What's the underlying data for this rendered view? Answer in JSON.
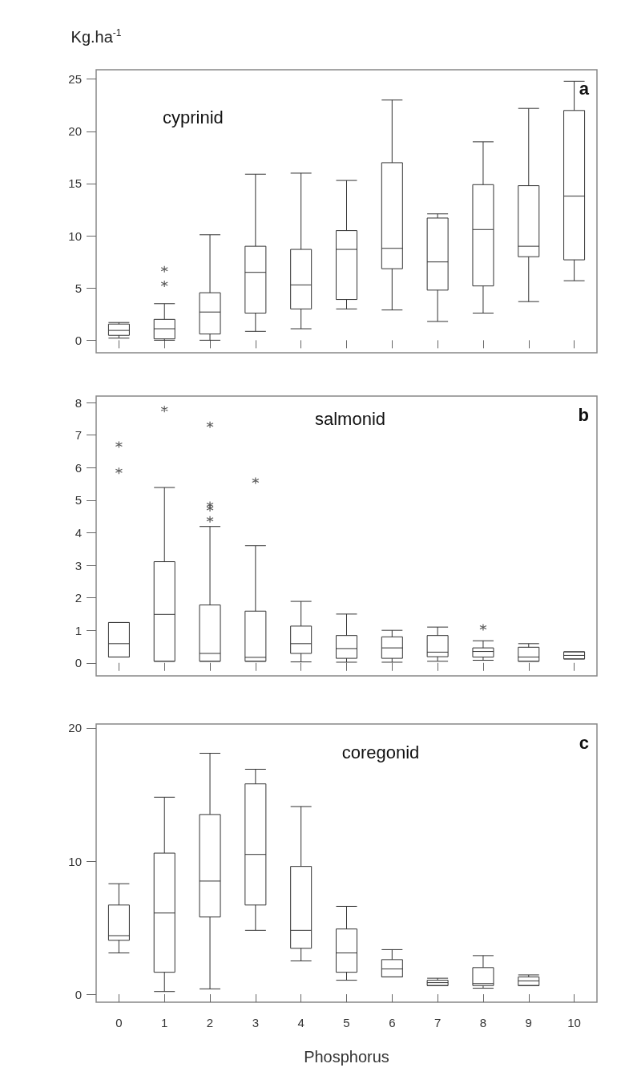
{
  "chart_data": [
    {
      "type": "box",
      "title": "cyprinid",
      "ylabel": "Kg.ha$^{-1}$",
      "annotations": [
        "a"
      ],
      "categories": [
        "0",
        "1",
        "2",
        "3",
        "4",
        "5",
        "6",
        "7",
        "8",
        "9",
        "10"
      ],
      "color": "#333333",
      "marker": "star",
      "tick_labels": "y",
      "grid": false,
      "ylim": [
        -1.2,
        25.9
      ],
      "yticks": [
        0,
        5,
        10,
        15,
        20,
        25
      ],
      "boxes": [
        {
          "low": 0.2,
          "q1": 0.47,
          "median": 0.94,
          "q3": 1.55,
          "high": 1.7
        },
        {
          "low": 0,
          "q1": 0.13,
          "median": 1.1,
          "q3": 2.0,
          "high": 3.5,
          "outliers": [
            5.4,
            6.8
          ]
        },
        {
          "low": 0,
          "q1": 0.6,
          "median": 2.7,
          "q3": 4.55,
          "high": 10.1
        },
        {
          "low": 0.85,
          "q1": 2.6,
          "median": 6.5,
          "q3": 9.0,
          "high": 15.9
        },
        {
          "low": 1.1,
          "q1": 3.0,
          "median": 5.3,
          "q3": 8.7,
          "high": 16.0
        },
        {
          "low": 3.0,
          "q1": 3.9,
          "median": 8.7,
          "q3": 10.5,
          "high": 15.3
        },
        {
          "low": 2.9,
          "q1": 6.85,
          "median": 8.8,
          "q3": 17.0,
          "high": 23.0
        },
        {
          "low": 1.8,
          "q1": 4.8,
          "median": 7.5,
          "q3": 11.7,
          "high": 12.1
        },
        {
          "low": 2.6,
          "q1": 5.2,
          "median": 10.6,
          "q3": 14.9,
          "high": 19.0
        },
        {
          "low": 3.7,
          "q1": 8.0,
          "median": 9.0,
          "q3": 14.8,
          "high": 22.2
        },
        {
          "low": 5.7,
          "q1": 7.7,
          "median": 13.8,
          "q3": 22.0,
          "high": 24.8
        }
      ]
    },
    {
      "type": "box",
      "title": "salmonid",
      "annotations": [
        "b"
      ],
      "categories": [
        "0",
        "1",
        "2",
        "3",
        "4",
        "5",
        "6",
        "7",
        "8",
        "9",
        "10"
      ],
      "color": "#333333",
      "marker": "star",
      "tick_labels": "y",
      "grid": false,
      "ylim": [
        -0.4,
        8.2
      ],
      "yticks": [
        0,
        1,
        2,
        3,
        4,
        5,
        6,
        7,
        8
      ],
      "boxes": [
        {
          "low": 0.18,
          "q1": 0.18,
          "median": 0.59,
          "q3": 1.24,
          "high": 1.24,
          "outliers": [
            5.9,
            6.71
          ]
        },
        {
          "low": 0.05,
          "q1": 0.05,
          "median": 1.49,
          "q3": 3.11,
          "high": 5.39,
          "outliers": [
            7.8
          ]
        },
        {
          "low": 0.05,
          "q1": 0.05,
          "median": 0.29,
          "q3": 1.78,
          "high": 4.19,
          "outliers": [
            4.41,
            4.75,
            4.86,
            7.32
          ]
        },
        {
          "low": 0.05,
          "q1": 0.05,
          "median": 0.17,
          "q3": 1.59,
          "high": 3.6,
          "outliers": [
            5.6
          ]
        },
        {
          "low": 0.03,
          "q1": 0.29,
          "median": 0.59,
          "q3": 1.13,
          "high": 1.89
        },
        {
          "low": 0.02,
          "q1": 0.14,
          "median": 0.44,
          "q3": 0.84,
          "high": 1.5
        },
        {
          "low": 0.02,
          "q1": 0.14,
          "median": 0.46,
          "q3": 0.8,
          "high": 1.0
        },
        {
          "low": 0.05,
          "q1": 0.19,
          "median": 0.33,
          "q3": 0.84,
          "high": 1.1
        },
        {
          "low": 0.08,
          "q1": 0.18,
          "median": 0.35,
          "q3": 0.46,
          "high": 0.68,
          "outliers": [
            1.09
          ]
        },
        {
          "low": 0.05,
          "q1": 0.05,
          "median": 0.18,
          "q3": 0.48,
          "high": 0.59
        },
        {
          "low": 0.12,
          "q1": 0.12,
          "median": 0.23,
          "q3": 0.34,
          "high": 0.34
        }
      ]
    },
    {
      "type": "box",
      "title": "coregonid",
      "xlabel": "Phosphorus",
      "annotations": [
        "c"
      ],
      "categories": [
        "0",
        "1",
        "2",
        "3",
        "4",
        "5",
        "6",
        "7",
        "8",
        "9",
        "10"
      ],
      "color": "#333333",
      "grid": false,
      "ylim": [
        -0.6,
        20.3
      ],
      "yticks": [
        0,
        10,
        20
      ],
      "boxes": [
        {
          "low": 3.1,
          "q1": 4.05,
          "median": 4.4,
          "q3": 6.7,
          "high": 8.3
        },
        {
          "low": 0.2,
          "q1": 1.65,
          "median": 6.1,
          "q3": 10.6,
          "high": 14.8
        },
        {
          "low": 0.4,
          "q1": 5.8,
          "median": 8.5,
          "q3": 13.5,
          "high": 18.1
        },
        {
          "low": 4.8,
          "q1": 6.7,
          "median": 10.5,
          "q3": 15.8,
          "high": 16.9
        },
        {
          "low": 2.5,
          "q1": 3.45,
          "median": 4.8,
          "q3": 9.6,
          "high": 14.1
        },
        {
          "low": 1.05,
          "q1": 1.65,
          "median": 3.1,
          "q3": 4.9,
          "high": 6.6
        },
        {
          "low": 1.3,
          "q1": 1.3,
          "median": 1.9,
          "q3": 2.6,
          "high": 3.35
        },
        {
          "low": 0.65,
          "q1": 0.65,
          "median": 0.87,
          "q3": 1.05,
          "high": 1.2
        },
        {
          "low": 0.45,
          "q1": 0.65,
          "median": 0.8,
          "q3": 2.0,
          "high": 2.9
        },
        {
          "low": 0.65,
          "q1": 0.65,
          "median": 1.0,
          "q3": 1.3,
          "high": 1.45
        },
        null
      ]
    }
  ]
}
